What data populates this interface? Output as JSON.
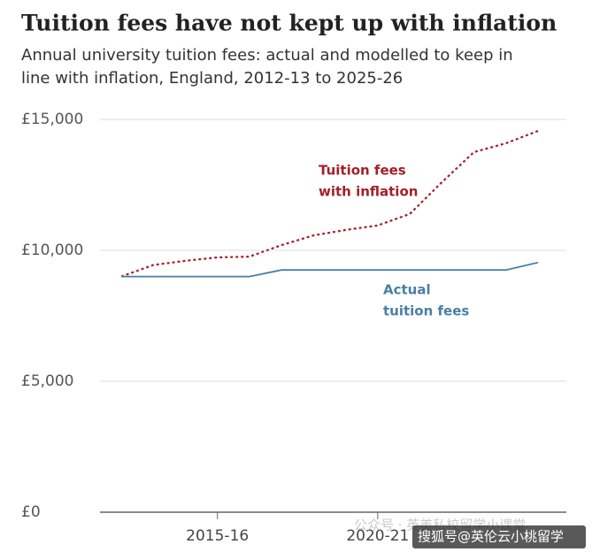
{
  "chart_data": {
    "type": "line",
    "title": "Tuition fees have not kept up with inflation",
    "subtitle": [
      "Annual university tuition fees: actual and modelled to keep in",
      "line with inflation, England, 2012-13 to 2025-26"
    ],
    "categories": [
      null,
      null,
      null,
      "2015-16",
      null,
      null,
      null,
      null,
      "2020-21",
      null,
      null,
      null,
      null,
      null
    ],
    "series": [
      {
        "label": [
          "Tuition fees",
          "with inflation"
        ],
        "color": "#a3202a",
        "dash": true,
        "values": [
          9000,
          9440,
          9600,
          9730,
          9760,
          10200,
          10570,
          10780,
          10950,
          11390,
          12600,
          13750,
          14090,
          14560
        ]
      },
      {
        "label": [
          "Actual",
          "tuition fees"
        ],
        "color": "#4a7fa5",
        "dash": false,
        "values": [
          9000,
          9000,
          9000,
          9000,
          9000,
          9250,
          9250,
          9250,
          9250,
          9250,
          9250,
          9250,
          9250,
          9535
        ]
      }
    ],
    "ylim": [
      0,
      15000
    ],
    "yticks": [
      {
        "value": 0,
        "label": "£0"
      },
      {
        "value": 5000,
        "label": "£5,000"
      },
      {
        "value": 10000,
        "label": "£10,000"
      },
      {
        "value": 15000,
        "label": "£15,000"
      }
    ],
    "grid": true,
    "watermark": [
      "公众号 · 英美私校留学小课堂",
      "搜狐号@英伦云小桃留学"
    ]
  }
}
